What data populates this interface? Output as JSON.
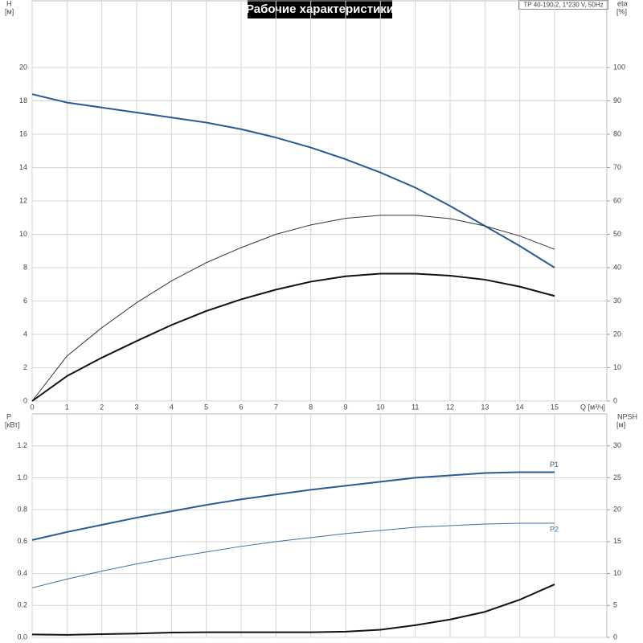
{
  "chart_data": [
    {
      "type": "line",
      "title": "Рабочие характеристики",
      "annotation": "TP 40-190/2, 1*230 V, 50Hz",
      "ylabel": "H",
      "yunit": "[м]",
      "y2label": "eta",
      "y2unit": "[%]",
      "xlabel": "Q [м³/ч]",
      "x": [
        0,
        1,
        2,
        3,
        4,
        5,
        6,
        7,
        8,
        9,
        10,
        11,
        12,
        13,
        14,
        15
      ],
      "xlim": [
        0,
        16.5
      ],
      "xticks": [
        0,
        1,
        2,
        3,
        4,
        5,
        6,
        7,
        8,
        9,
        10,
        11,
        12,
        13,
        14,
        15
      ],
      "ylim": [
        0,
        24
      ],
      "yticks": [
        0,
        2,
        4,
        6,
        8,
        10,
        12,
        14,
        16,
        18,
        20
      ],
      "y2lim": [
        0,
        120
      ],
      "y2ticks": [
        0,
        10,
        20,
        30,
        40,
        50,
        60,
        70,
        80,
        90,
        100
      ],
      "grid": true,
      "series": [
        {
          "color": "#2a5a93",
          "width": 2,
          "values": [
            18.4,
            17.9,
            17.6,
            17.3,
            17.0,
            16.7,
            16.3,
            15.8,
            15.2,
            14.5,
            13.7,
            12.8,
            11.7,
            10.5,
            9.3,
            8.0
          ]
        },
        {
          "color": "#333333",
          "width": 1,
          "axis": "y2",
          "values": [
            0,
            13.5,
            22,
            29.5,
            36,
            41.5,
            46,
            50,
            52.8,
            54.8,
            55.7,
            55.7,
            54.7,
            52.5,
            49.5,
            45.5
          ]
        },
        {
          "color": "#111111",
          "width": 2,
          "axis": "y2",
          "values": [
            0,
            7.5,
            13,
            18,
            22.8,
            27,
            30.5,
            33.4,
            35.8,
            37.4,
            38.2,
            38.2,
            37.6,
            36.4,
            34.3,
            31.5
          ]
        }
      ]
    },
    {
      "type": "line",
      "ylabel": "P",
      "yunit": "[кВт]",
      "y2label": "NPSH",
      "y2unit": "[м]",
      "x": [
        0,
        1,
        2,
        3,
        4,
        5,
        6,
        7,
        8,
        9,
        10,
        11,
        12,
        13,
        14,
        15
      ],
      "xlim": [
        0,
        16.5
      ],
      "ylim": [
        0,
        1.4
      ],
      "yticks": [
        {
          "value": 0,
          "label": "0.0"
        },
        0.2,
        0.4,
        0.6,
        0.8,
        {
          "value": 1,
          "label": "1.0"
        },
        1.2
      ],
      "y2lim": [
        0,
        35
      ],
      "y2ticks": [
        0,
        5,
        10,
        15,
        20,
        25,
        30
      ],
      "grid": true,
      "series": [
        {
          "name": "P1",
          "color": "#2a5a93",
          "width": 2,
          "values": [
            0.61,
            0.66,
            0.705,
            0.75,
            0.79,
            0.83,
            0.865,
            0.895,
            0.925,
            0.95,
            0.975,
            1.0,
            1.015,
            1.03,
            1.035,
            1.035
          ]
        },
        {
          "name": "P2",
          "color": "#3d6ea3",
          "width": 1,
          "values": [
            0.31,
            0.365,
            0.415,
            0.46,
            0.5,
            0.535,
            0.57,
            0.6,
            0.625,
            0.65,
            0.67,
            0.69,
            0.7,
            0.71,
            0.715,
            0.715
          ]
        },
        {
          "color": "#111111",
          "width": 2,
          "axis": "y2",
          "values": [
            0.45,
            0.4,
            0.5,
            0.6,
            0.75,
            0.8,
            0.8,
            0.8,
            0.8,
            0.9,
            1.2,
            1.9,
            2.8,
            4.0,
            5.9,
            8.3
          ]
        }
      ]
    }
  ]
}
